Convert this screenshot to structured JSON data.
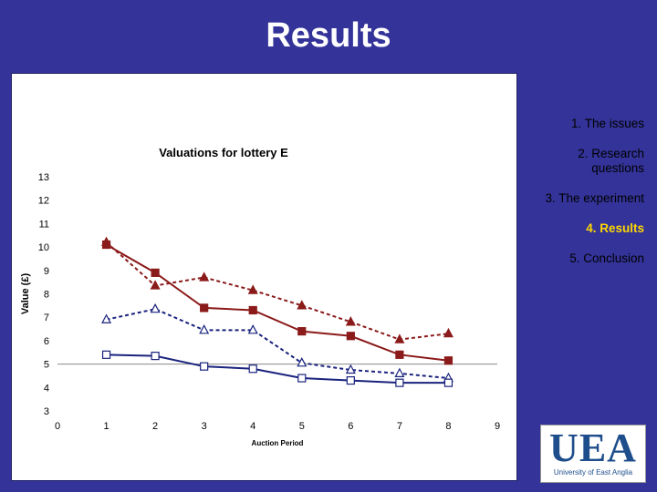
{
  "slide": {
    "title": "Results"
  },
  "nav": [
    {
      "label": "1.  The issues",
      "active": false
    },
    {
      "label": "2. Research\nquestions",
      "active": false
    },
    {
      "label": "3.  The experiment",
      "active": false
    },
    {
      "label": "4.  Results",
      "active": true
    },
    {
      "label": "5.  Conclusion",
      "active": false
    }
  ],
  "logo": {
    "letters": "UEA",
    "subtitle": "University of East Anglia"
  },
  "chart_data": {
    "type": "line",
    "title": "Valuations for lottery E",
    "xlabel": "Auction Period",
    "ylabel": "Value (£)",
    "xlim": [
      0,
      9
    ],
    "ylim": [
      3,
      13
    ],
    "xticks": [
      0,
      1,
      2,
      3,
      4,
      5,
      6,
      7,
      8,
      9
    ],
    "yticks": [
      3,
      4,
      5,
      6,
      7,
      8,
      9,
      10,
      11,
      12,
      13
    ],
    "reference_line": 5,
    "x": [
      1,
      2,
      3,
      4,
      5,
      6,
      7,
      8
    ],
    "series": [
      {
        "values": [
          10.1,
          8.9,
          7.4,
          7.3,
          6.4,
          6.2,
          5.4,
          5.15
        ],
        "color": "#8b1a1a",
        "dash": "solid",
        "marker": "square-filled"
      },
      {
        "values": [
          10.2,
          8.35,
          8.7,
          8.15,
          7.5,
          6.8,
          6.05,
          6.3
        ],
        "color": "#8b1a1a",
        "dash": "dashed",
        "marker": "triangle-filled"
      },
      {
        "values": [
          6.9,
          7.35,
          6.45,
          6.45,
          5.05,
          4.75,
          4.6,
          4.4
        ],
        "color": "#1a237e",
        "dash": "dashed",
        "marker": "triangle-open"
      },
      {
        "values": [
          5.4,
          5.35,
          4.9,
          4.8,
          4.4,
          4.3,
          4.2,
          4.2
        ],
        "color": "#1a237e",
        "dash": "solid",
        "marker": "square-open"
      }
    ]
  }
}
